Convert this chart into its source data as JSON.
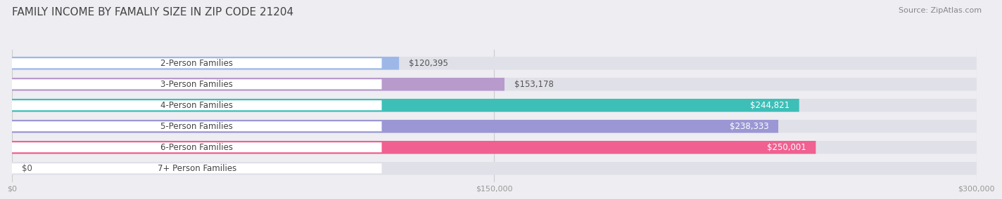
{
  "title": "FAMILY INCOME BY FAMALIY SIZE IN ZIP CODE 21204",
  "source": "Source: ZipAtlas.com",
  "categories": [
    "2-Person Families",
    "3-Person Families",
    "4-Person Families",
    "5-Person Families",
    "6-Person Families",
    "7+ Person Families"
  ],
  "values": [
    120395,
    153178,
    244821,
    238333,
    250001,
    0
  ],
  "bar_colors": [
    "#9db8e8",
    "#b89acc",
    "#3dbfb8",
    "#9b97d4",
    "#f06090",
    "#f5d5a8"
  ],
  "label_colors_inside": [
    "#ffffff",
    "#ffffff",
    "#ffffff",
    "#ffffff",
    "#ffffff",
    "#ffffff"
  ],
  "xlim": [
    0,
    300000
  ],
  "xticks": [
    0,
    150000,
    300000
  ],
  "xtick_labels": [
    "$0",
    "$150,000",
    "$300,000"
  ],
  "background_color": "#ededf2",
  "bar_bg_color": "#e0e0e8",
  "bar_height": 0.62,
  "value_fontsize": 8.5,
  "category_fontsize": 8.5,
  "title_fontsize": 11,
  "source_fontsize": 8
}
